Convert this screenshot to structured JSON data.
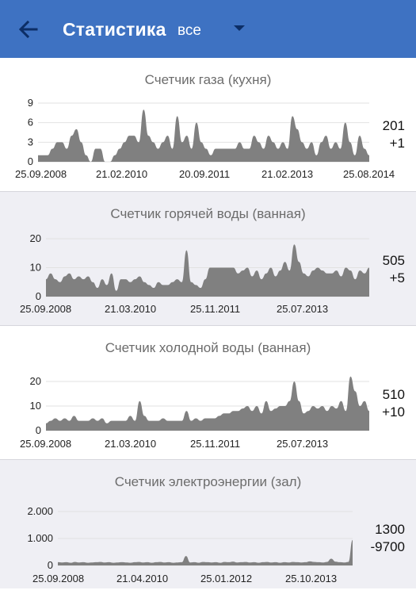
{
  "appbar": {
    "title": "Статистика",
    "filter_value": "все"
  },
  "colors": {
    "appbar": "#3e72c2",
    "area": "#808080",
    "grid": "#e2e2e2"
  },
  "meters": [
    {
      "title": "Счетчик газа (кухня)",
      "total": "201",
      "delta": "+1",
      "chart_data": {
        "type": "area",
        "ylim": [
          0,
          9
        ],
        "yticks": [
          "0",
          "3",
          "6",
          "9"
        ],
        "xticks": [
          {
            "label": "25.09.2008",
            "x": 0
          },
          {
            "label": "21.02.2010",
            "x": 0.243
          },
          {
            "label": "20.09.2011",
            "x": 0.497
          },
          {
            "label": "21.02.2013",
            "x": 0.734
          },
          {
            "label": "25.08.2014",
            "x": 1
          }
        ],
        "values": [
          1,
          1,
          1,
          2,
          3,
          3,
          2,
          4,
          5,
          3,
          1,
          0,
          2,
          2,
          0,
          0,
          1,
          2,
          3,
          4,
          4,
          3,
          8,
          4,
          3,
          2,
          3,
          4,
          2,
          7,
          3,
          4,
          2,
          6,
          3,
          2,
          1,
          2,
          2,
          2,
          2,
          2,
          3,
          2,
          2,
          4,
          3,
          2,
          4,
          3,
          2,
          3,
          2,
          7,
          5,
          3,
          2,
          3,
          1,
          3,
          4,
          2,
          3,
          2,
          6,
          3,
          1,
          4,
          2,
          1
        ]
      }
    },
    {
      "title": "Счетчик горячей воды (ванная)",
      "total": "505",
      "delta": "+5",
      "chart_data": {
        "type": "area",
        "ylim": [
          0,
          20
        ],
        "yticks": [
          "0",
          "10",
          "20"
        ],
        "xticks": [
          {
            "label": "25.09.2008",
            "x": 0
          },
          {
            "label": "21.03.2010",
            "x": 0.279
          },
          {
            "label": "25.11.2011",
            "x": 0.537
          },
          {
            "label": "25.07.2013",
            "x": 0.79
          }
        ],
        "values": [
          6,
          8,
          6,
          5,
          7,
          8,
          6,
          7,
          6,
          7,
          5,
          3,
          6,
          4,
          8,
          2,
          6,
          6,
          5,
          6,
          7,
          5,
          4,
          3,
          5,
          4,
          4,
          5,
          6,
          5,
          16,
          5,
          4,
          3,
          6,
          10,
          10,
          10,
          10,
          10,
          10,
          8,
          9,
          10,
          7,
          9,
          6,
          8,
          10,
          7,
          9,
          12,
          9,
          18,
          12,
          8,
          7,
          9,
          10,
          9,
          8,
          8,
          9,
          7,
          10,
          9,
          6,
          9,
          8,
          10
        ]
      }
    },
    {
      "title": "Счетчик холодной воды (ванная)",
      "total": "510",
      "delta": "+10",
      "chart_data": {
        "type": "area",
        "ylim": [
          0,
          20
        ],
        "yticks": [
          "0",
          "10",
          "20"
        ],
        "xticks": [
          {
            "label": "25.09.2008",
            "x": 0
          },
          {
            "label": "21.03.2010",
            "x": 0.279
          },
          {
            "label": "25.11.2011",
            "x": 0.537
          },
          {
            "label": "25.07.2013",
            "x": 0.79
          }
        ],
        "values": [
          3,
          4,
          5,
          4,
          5,
          4,
          6,
          4,
          4,
          4,
          5,
          4,
          5,
          3,
          4,
          4,
          4,
          4,
          6,
          4,
          12,
          6,
          4,
          4,
          4,
          5,
          4,
          4,
          4,
          4,
          8,
          4,
          5,
          4,
          5,
          5,
          5,
          6,
          7,
          7,
          8,
          8,
          9,
          10,
          8,
          10,
          7,
          12,
          8,
          9,
          10,
          10,
          12,
          20,
          12,
          7,
          8,
          10,
          9,
          10,
          8,
          10,
          9,
          12,
          8,
          22,
          16,
          10,
          12,
          8
        ]
      }
    },
    {
      "title": "Счетчик электроэнергии (зал)",
      "total": "1300",
      "delta": "-9700",
      "chart_data": {
        "type": "area",
        "ylim": [
          0,
          2000
        ],
        "yticks": [
          "0",
          "1.000",
          "2.000"
        ],
        "xticks": [
          {
            "label": "25.09.2008",
            "x": 0
          },
          {
            "label": "21.04.2010",
            "x": 0.279
          },
          {
            "label": "25.01.2012",
            "x": 0.567
          },
          {
            "label": "25.10.2013",
            "x": 0.822
          }
        ],
        "values": [
          120,
          110,
          120,
          100,
          130,
          110,
          120,
          100,
          110,
          120,
          130,
          110,
          120,
          100,
          110,
          120,
          110,
          100,
          120,
          130,
          110,
          120,
          100,
          120,
          130,
          110,
          120,
          100,
          110,
          120,
          350,
          110,
          120,
          100,
          130,
          120,
          110,
          120,
          100,
          130,
          120,
          140,
          110,
          120,
          130,
          110,
          120,
          100,
          120,
          130,
          110,
          120,
          100,
          120,
          110,
          130,
          120,
          110,
          120,
          150,
          130,
          120,
          110,
          130,
          250,
          140,
          120,
          110,
          130,
          950
        ]
      }
    }
  ]
}
